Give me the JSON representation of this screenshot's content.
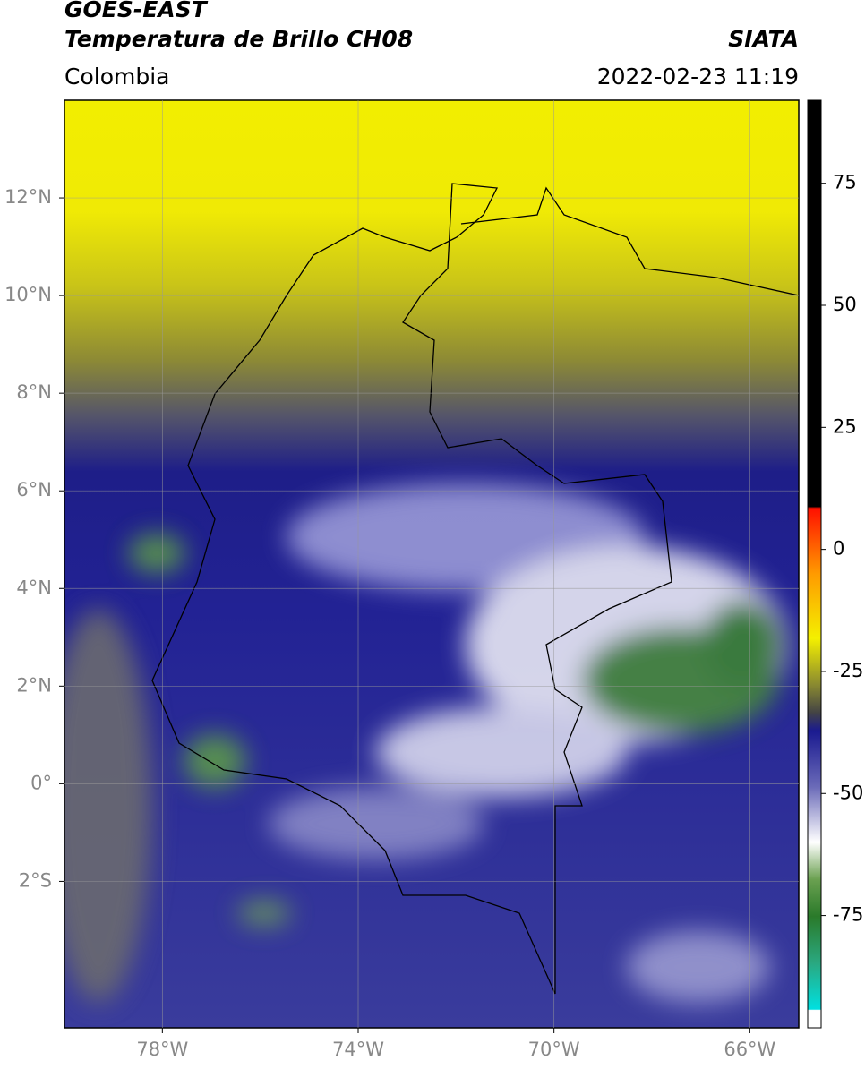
{
  "header": {
    "satellite": "GOES-EAST",
    "product": "Temperatura de Brillo CH08",
    "source": "SIATA",
    "region": "Colombia",
    "datetime": "2022-02-23 11:19"
  },
  "map": {
    "lon_lim": [
      -80,
      -65
    ],
    "lat_lim": [
      -5,
      14
    ],
    "lon_ticks": [
      {
        "value": -78,
        "label": "78°W"
      },
      {
        "value": -74,
        "label": "74°W"
      },
      {
        "value": -70,
        "label": "70°W"
      },
      {
        "value": -66,
        "label": "66°W"
      }
    ],
    "lat_ticks": [
      {
        "value": 12,
        "label": "12°N"
      },
      {
        "value": 10,
        "label": "10°N"
      },
      {
        "value": 8,
        "label": "8°N"
      },
      {
        "value": 6,
        "label": "6°N"
      },
      {
        "value": 4,
        "label": "4°N"
      },
      {
        "value": 2,
        "label": "2°N"
      },
      {
        "value": 0,
        "label": "0°"
      },
      {
        "value": -2,
        "label": "2°S"
      }
    ]
  },
  "colorbar": {
    "lim": [
      -98,
      92
    ],
    "ticks": [
      75,
      50,
      25,
      0,
      -25,
      -50,
      -75
    ]
  }
}
